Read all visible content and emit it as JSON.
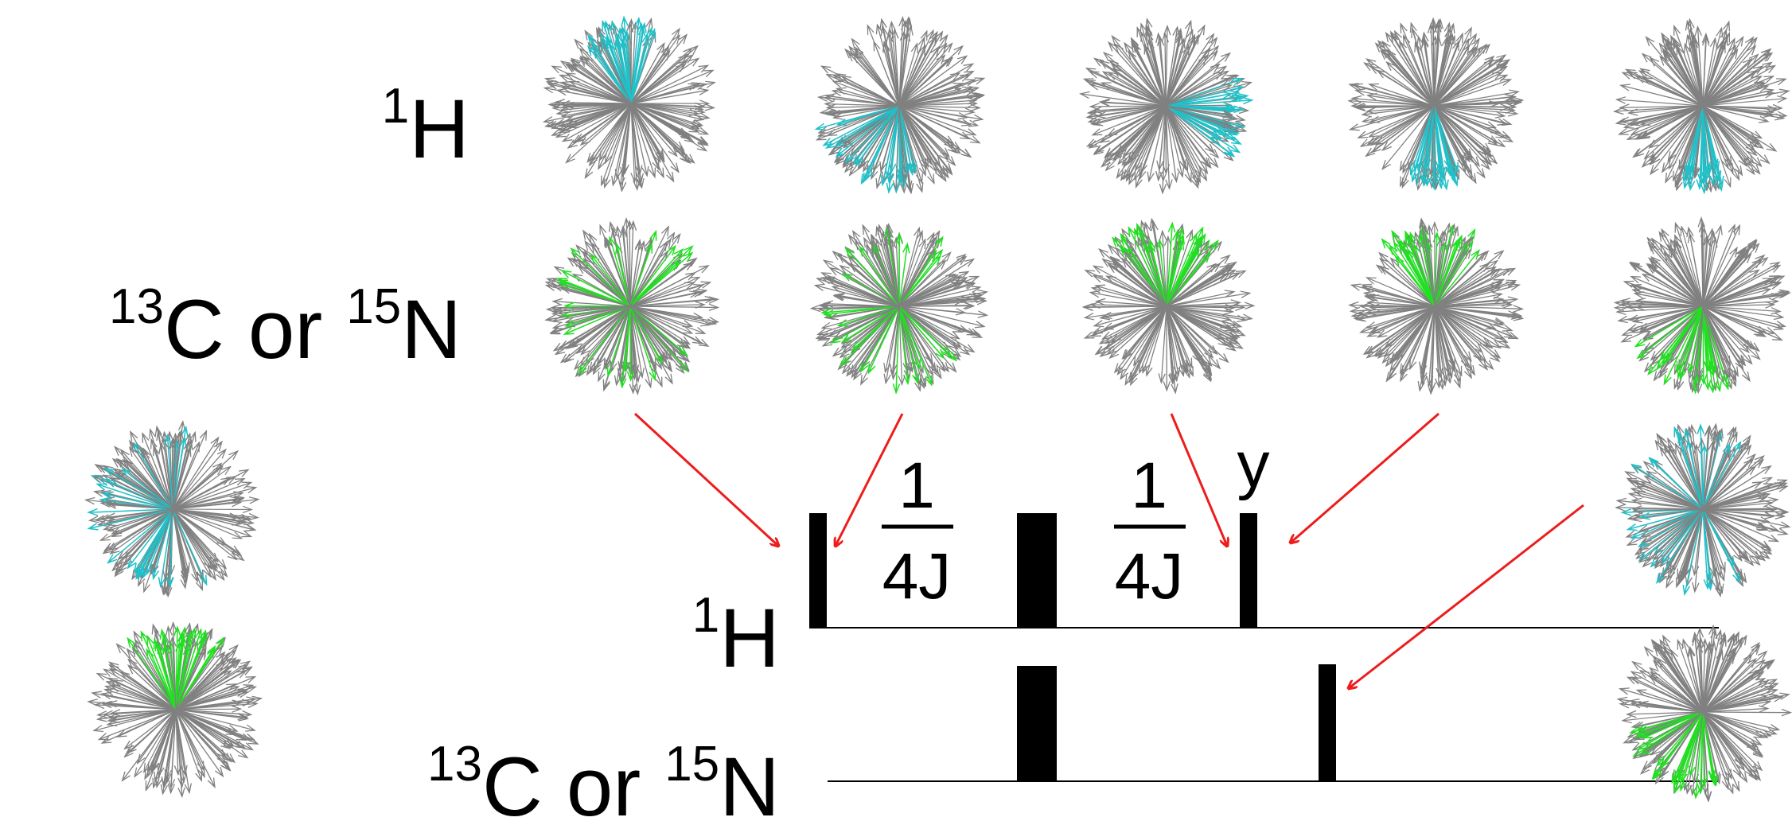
{
  "labels": {
    "proton": {
      "sup": "1",
      "base": "H"
    },
    "hetero": {
      "sup_c": "13",
      "base_c": "C",
      "or": "or",
      "sup_n": "15",
      "base_n": "N"
    }
  },
  "delays": {
    "numerator": "1",
    "denominator": "4J"
  },
  "phase_label": "y",
  "colors": {
    "spin_gray": "#808080",
    "proton_highlight": "#20c0c8",
    "hetero_highlight": "#20e020",
    "arrow_red": "#ee1c1c",
    "pulse": "#000000"
  },
  "icons": {
    "spin_ensemble": "vector-fan-icon",
    "pointer": "red-arrow-icon"
  }
}
